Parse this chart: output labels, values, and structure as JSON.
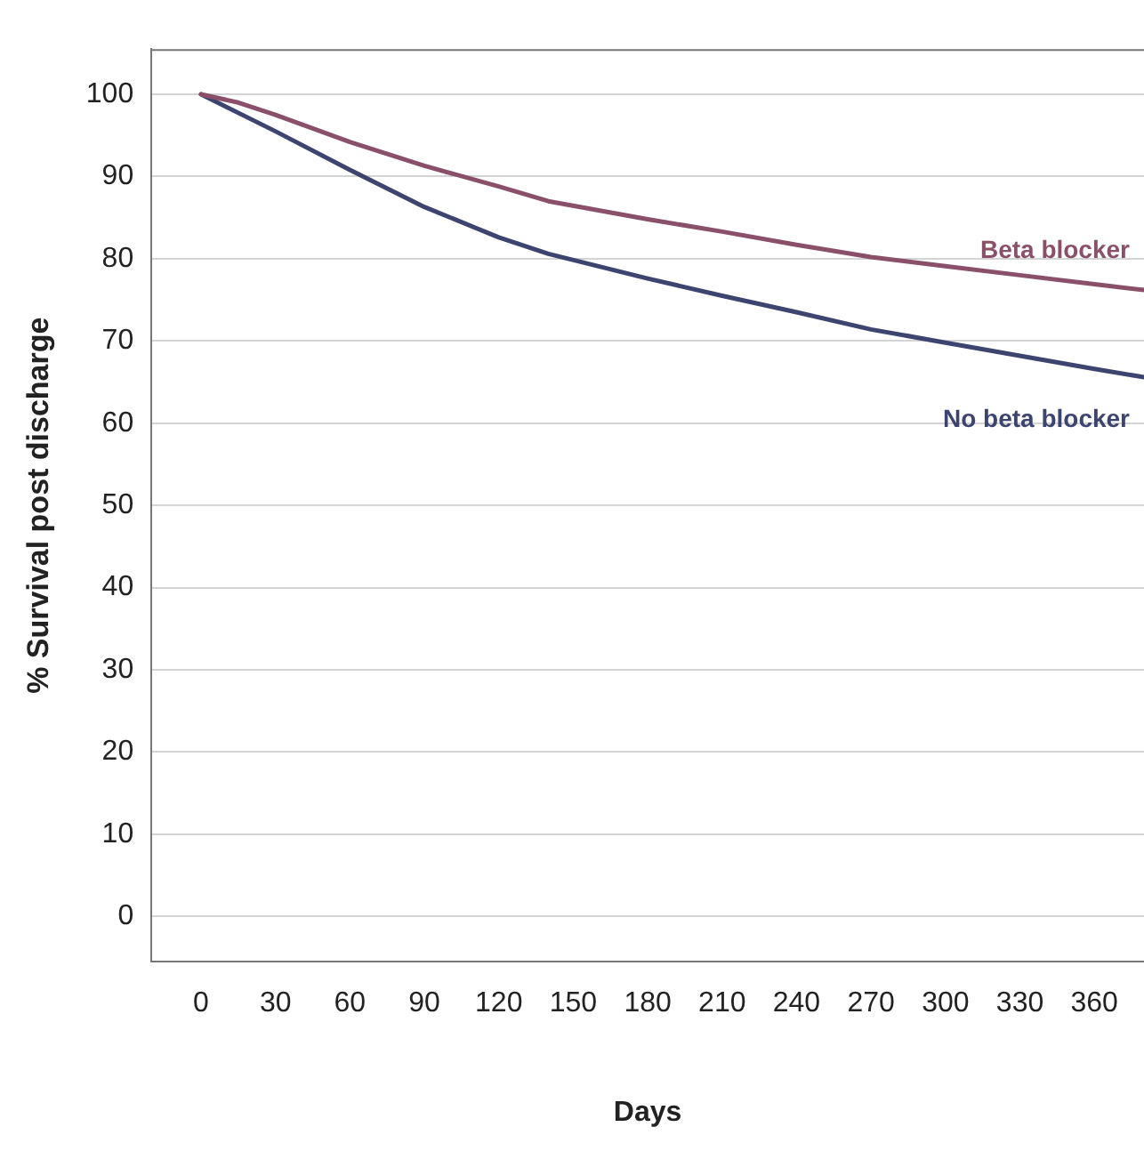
{
  "chart_data": {
    "type": "line",
    "xlabel": "Days",
    "ylabel": "% Survival post discharge",
    "xlim": [
      -20,
      380
    ],
    "xticks": [
      0,
      30,
      60,
      90,
      120,
      150,
      180,
      210,
      240,
      270,
      300,
      330,
      360
    ],
    "ylim": [
      -5.5,
      105.5
    ],
    "yticks": [
      0,
      10,
      20,
      30,
      40,
      50,
      60,
      70,
      80,
      90,
      100
    ],
    "grid": "y",
    "marker": "none",
    "line_style": "solid",
    "series": [
      {
        "name": "Beta blocker",
        "color": "#8b5069",
        "x": [
          0,
          15,
          30,
          60,
          90,
          120,
          140,
          180,
          210,
          240,
          270,
          300,
          330,
          360,
          380
        ],
        "values": [
          100,
          99,
          97.5,
          94.2,
          91.3,
          88.8,
          87,
          84.8,
          83.3,
          81.7,
          80.2,
          79.1,
          78,
          76.9,
          76.2
        ]
      },
      {
        "name": "No beta blocker",
        "color": "#3d4470",
        "x": [
          0,
          30,
          60,
          90,
          120,
          140,
          180,
          210,
          240,
          270,
          300,
          330,
          360,
          380
        ],
        "values": [
          100,
          95.5,
          90.8,
          86.3,
          82.6,
          80.6,
          77.6,
          75.5,
          73.5,
          71.4,
          69.8,
          68.2,
          66.6,
          65.6
        ]
      }
    ]
  }
}
